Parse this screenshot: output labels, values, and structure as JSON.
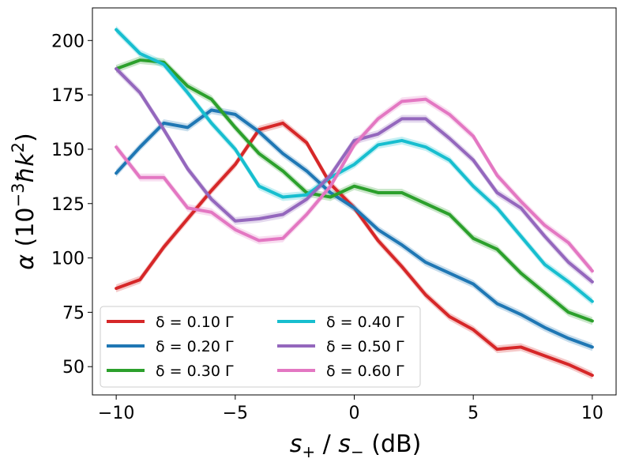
{
  "chart_data": {
    "type": "line",
    "title": "",
    "xlabel": "s₊ / s₋ (dB)",
    "xlabel_parts": {
      "s1": "s",
      "sub1": "+",
      "sep": " / ",
      "s2": "s",
      "sub2": "−",
      "unit": " (dB)"
    },
    "ylabel": "α (10⁻³ħk²)",
    "ylabel_parts": {
      "alpha": "α",
      "open": " (10",
      "exp": "−3",
      "hbar": "ħk",
      "exp2": "2",
      "close": ")"
    },
    "xlim": [
      -11,
      11
    ],
    "ylim": [
      37,
      215
    ],
    "xticks": [
      -10,
      -5,
      0,
      5,
      10
    ],
    "xtick_labels": [
      "−10",
      "−5",
      "0",
      "5",
      "10"
    ],
    "yticks": [
      50,
      75,
      100,
      125,
      150,
      175,
      200
    ],
    "ytick_labels": [
      "50",
      "75",
      "100",
      "125",
      "150",
      "175",
      "200"
    ],
    "legend_position": "lower-left",
    "legend_columns": 2,
    "x": [
      -10,
      -9,
      -8,
      -7,
      -6,
      -5,
      -4,
      -3,
      -2,
      -1,
      0,
      1,
      2,
      3,
      4,
      5,
      6,
      7,
      8,
      9,
      10
    ],
    "series": [
      {
        "name": "δ = 0.10 Γ",
        "color": "#d62728",
        "values": [
          86,
          90,
          105,
          118,
          131,
          143,
          159,
          162,
          153,
          134,
          123,
          108,
          96,
          83,
          73,
          67,
          58,
          59,
          55,
          51,
          46
        ]
      },
      {
        "name": "δ = 0.20 Γ",
        "color": "#1f77b4",
        "values": [
          139,
          151,
          162,
          160,
          168,
          166,
          158,
          148,
          140,
          130,
          123,
          113,
          106,
          98,
          93,
          88,
          79,
          74,
          68,
          63,
          59
        ]
      },
      {
        "name": "δ = 0.30 Γ",
        "color": "#2ca02c",
        "values": [
          187,
          191,
          190,
          179,
          173,
          160,
          148,
          140,
          130,
          128,
          133,
          130,
          130,
          125,
          120,
          109,
          104,
          93,
          84,
          75,
          71
        ]
      },
      {
        "name": "δ = 0.40 Γ",
        "color": "#17becf",
        "values": [
          205,
          194,
          189,
          176,
          162,
          150,
          133,
          128,
          129,
          137,
          143,
          152,
          154,
          151,
          145,
          133,
          123,
          110,
          97,
          89,
          80
        ]
      },
      {
        "name": "δ = 0.50 Γ",
        "color": "#9467bd",
        "values": [
          187,
          176,
          159,
          141,
          127,
          117,
          118,
          120,
          127,
          138,
          154,
          157,
          164,
          164,
          155,
          145,
          130,
          123,
          110,
          98,
          89
        ]
      },
      {
        "name": "δ = 0.60 Γ",
        "color": "#e377c2",
        "values": [
          151,
          137,
          137,
          123,
          121,
          113,
          108,
          109,
          120,
          133,
          152,
          164,
          172,
          173,
          166,
          156,
          138,
          126,
          115,
          107,
          94
        ]
      }
    ],
    "grid": false
  }
}
